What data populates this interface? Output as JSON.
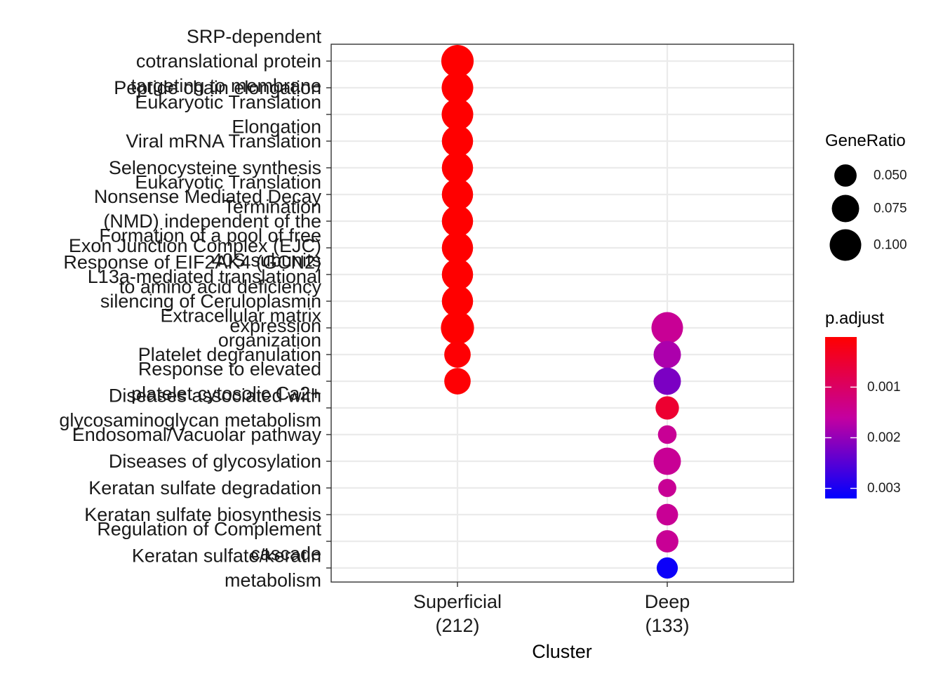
{
  "chart_data": {
    "type": "scatter",
    "xlabel": "Cluster",
    "ylabel": "",
    "clusters": [
      {
        "name": "Superficial",
        "count": "(212)"
      },
      {
        "name": "Deep",
        "count": "(133)"
      }
    ],
    "terms": [
      "SRP-dependent cotranslational protein targeting to membrane",
      "Peptide chain elongation",
      "Eukaryotic Translation Elongation",
      "Viral mRNA Translation",
      "Selenocysteine synthesis",
      "Eukaryotic Translation Termination",
      "Nonsense Mediated Decay (NMD) independent of the Exon Junction Complex (EJC)",
      "Formation of a pool of free 40S subunits",
      "Response of EIF2AK4 (GCN2) to amino acid deficiency",
      "L13a-mediated translational silencing of Ceruloplasmin expression",
      "Extracellular matrix organization",
      "Platelet degranulation",
      "Response to elevated platelet cytosolic Ca2+",
      "Diseases associated with glycosaminoglycan metabolism",
      "Endosomal/Vacuolar pathway",
      "Diseases of glycosylation",
      "Keratan sulfate degradation",
      "Keratan sulfate biosynthesis",
      "Regulation of Complement cascade",
      "Keratan sulfate/keratin metabolism"
    ],
    "term_label_lines": [
      [
        "SRP-dependent",
        "cotranslational protein",
        "targeting to membrane"
      ],
      [
        "Peptide chain elongation"
      ],
      [
        "Eukaryotic Translation",
        "Elongation"
      ],
      [
        "Viral mRNA Translation"
      ],
      [
        "Selenocysteine synthesis"
      ],
      [
        "Eukaryotic Translation",
        "Termination"
      ],
      [
        "Nonsense Mediated Decay",
        "(NMD) independent of the",
        "Exon Junction Complex (EJC)"
      ],
      [
        "Formation of a pool of free",
        "40S subunits"
      ],
      [
        "Response of EIF2AK4 (GCN2)",
        "to amino acid deficiency"
      ],
      [
        "L13a-mediated translational",
        "silencing of Ceruloplasmin",
        "expression"
      ],
      [
        "Extracellular matrix",
        "organization"
      ],
      [
        "Platelet degranulation"
      ],
      [
        "Response to elevated",
        "platelet cytosolic Ca2+"
      ],
      [
        "Diseases associated with",
        "glycosaminoglycan metabolism"
      ],
      [
        "Endosomal/Vacuolar pathway"
      ],
      [
        "Diseases of glycosylation"
      ],
      [
        "Keratan sulfate degradation"
      ],
      [
        "Keratan sulfate biosynthesis"
      ],
      [
        "Regulation of Complement",
        "cascade"
      ],
      [
        "Keratan sulfate/keratin",
        "metabolism"
      ]
    ],
    "points": [
      {
        "cluster": "Superficial",
        "term": "SRP-dependent cotranslational protein targeting to membrane",
        "gene_ratio": 0.105,
        "p_adjust": 1e-05
      },
      {
        "cluster": "Superficial",
        "term": "Peptide chain elongation",
        "gene_ratio": 0.1,
        "p_adjust": 1e-05
      },
      {
        "cluster": "Superficial",
        "term": "Eukaryotic Translation Elongation",
        "gene_ratio": 0.1,
        "p_adjust": 1e-05
      },
      {
        "cluster": "Superficial",
        "term": "Viral mRNA Translation",
        "gene_ratio": 0.098,
        "p_adjust": 1e-05
      },
      {
        "cluster": "Superficial",
        "term": "Selenocysteine synthesis",
        "gene_ratio": 0.098,
        "p_adjust": 1e-05
      },
      {
        "cluster": "Superficial",
        "term": "Eukaryotic Translation Termination",
        "gene_ratio": 0.098,
        "p_adjust": 1e-05
      },
      {
        "cluster": "Superficial",
        "term": "Nonsense Mediated Decay (NMD) independent of the Exon Junction Complex (EJC)",
        "gene_ratio": 0.098,
        "p_adjust": 1e-05
      },
      {
        "cluster": "Superficial",
        "term": "Formation of a pool of free 40S subunits",
        "gene_ratio": 0.098,
        "p_adjust": 1e-05
      },
      {
        "cluster": "Superficial",
        "term": "Response of EIF2AK4 (GCN2) to amino acid deficiency",
        "gene_ratio": 0.098,
        "p_adjust": 1e-05
      },
      {
        "cluster": "Superficial",
        "term": "L13a-mediated translational silencing of Ceruloplasmin expression",
        "gene_ratio": 0.098,
        "p_adjust": 1e-05
      },
      {
        "cluster": "Superficial",
        "term": "Extracellular matrix organization",
        "gene_ratio": 0.11,
        "p_adjust": 1e-05
      },
      {
        "cluster": "Superficial",
        "term": "Platelet degranulation",
        "gene_ratio": 0.07,
        "p_adjust": 5e-05
      },
      {
        "cluster": "Superficial",
        "term": "Response to elevated platelet cytosolic Ca2+",
        "gene_ratio": 0.07,
        "p_adjust": 5e-05
      },
      {
        "cluster": "Deep",
        "term": "Extracellular matrix organization",
        "gene_ratio": 0.1,
        "p_adjust": 0.0015
      },
      {
        "cluster": "Deep",
        "term": "Platelet degranulation",
        "gene_ratio": 0.075,
        "p_adjust": 0.0018
      },
      {
        "cluster": "Deep",
        "term": "Response to elevated platelet cytosolic Ca2+",
        "gene_ratio": 0.075,
        "p_adjust": 0.0022
      },
      {
        "cluster": "Deep",
        "term": "Diseases associated with glycosaminoglycan metabolism",
        "gene_ratio": 0.055,
        "p_adjust": 0.0005
      },
      {
        "cluster": "Deep",
        "term": "Endosomal/Vacuolar pathway",
        "gene_ratio": 0.035,
        "p_adjust": 0.0015
      },
      {
        "cluster": "Deep",
        "term": "Diseases of glycosylation",
        "gene_ratio": 0.075,
        "p_adjust": 0.0015
      },
      {
        "cluster": "Deep",
        "term": "Keratan sulfate degradation",
        "gene_ratio": 0.033,
        "p_adjust": 0.0015
      },
      {
        "cluster": "Deep",
        "term": "Keratan sulfate biosynthesis",
        "gene_ratio": 0.047,
        "p_adjust": 0.0015
      },
      {
        "cluster": "Deep",
        "term": "Regulation of Complement cascade",
        "gene_ratio": 0.05,
        "p_adjust": 0.0015
      },
      {
        "cluster": "Deep",
        "term": "Keratan sulfate/keratin metabolism",
        "gene_ratio": 0.045,
        "p_adjust": 0.0031
      }
    ],
    "size_legend": {
      "title": "GeneRatio",
      "values": [
        0.05,
        0.075,
        0.1
      ],
      "labels": [
        "0.050",
        "0.075",
        "0.100"
      ]
    },
    "color_legend": {
      "title": "p.adjust",
      "min": 1e-05,
      "max": 0.0032,
      "ticks": [
        0.001,
        0.002,
        0.003
      ],
      "tick_labels": [
        "0.001",
        "0.002",
        "0.003"
      ],
      "low_color": "#FF0000",
      "high_color": "#0000FF"
    },
    "grid": true,
    "legend_position": "right"
  }
}
